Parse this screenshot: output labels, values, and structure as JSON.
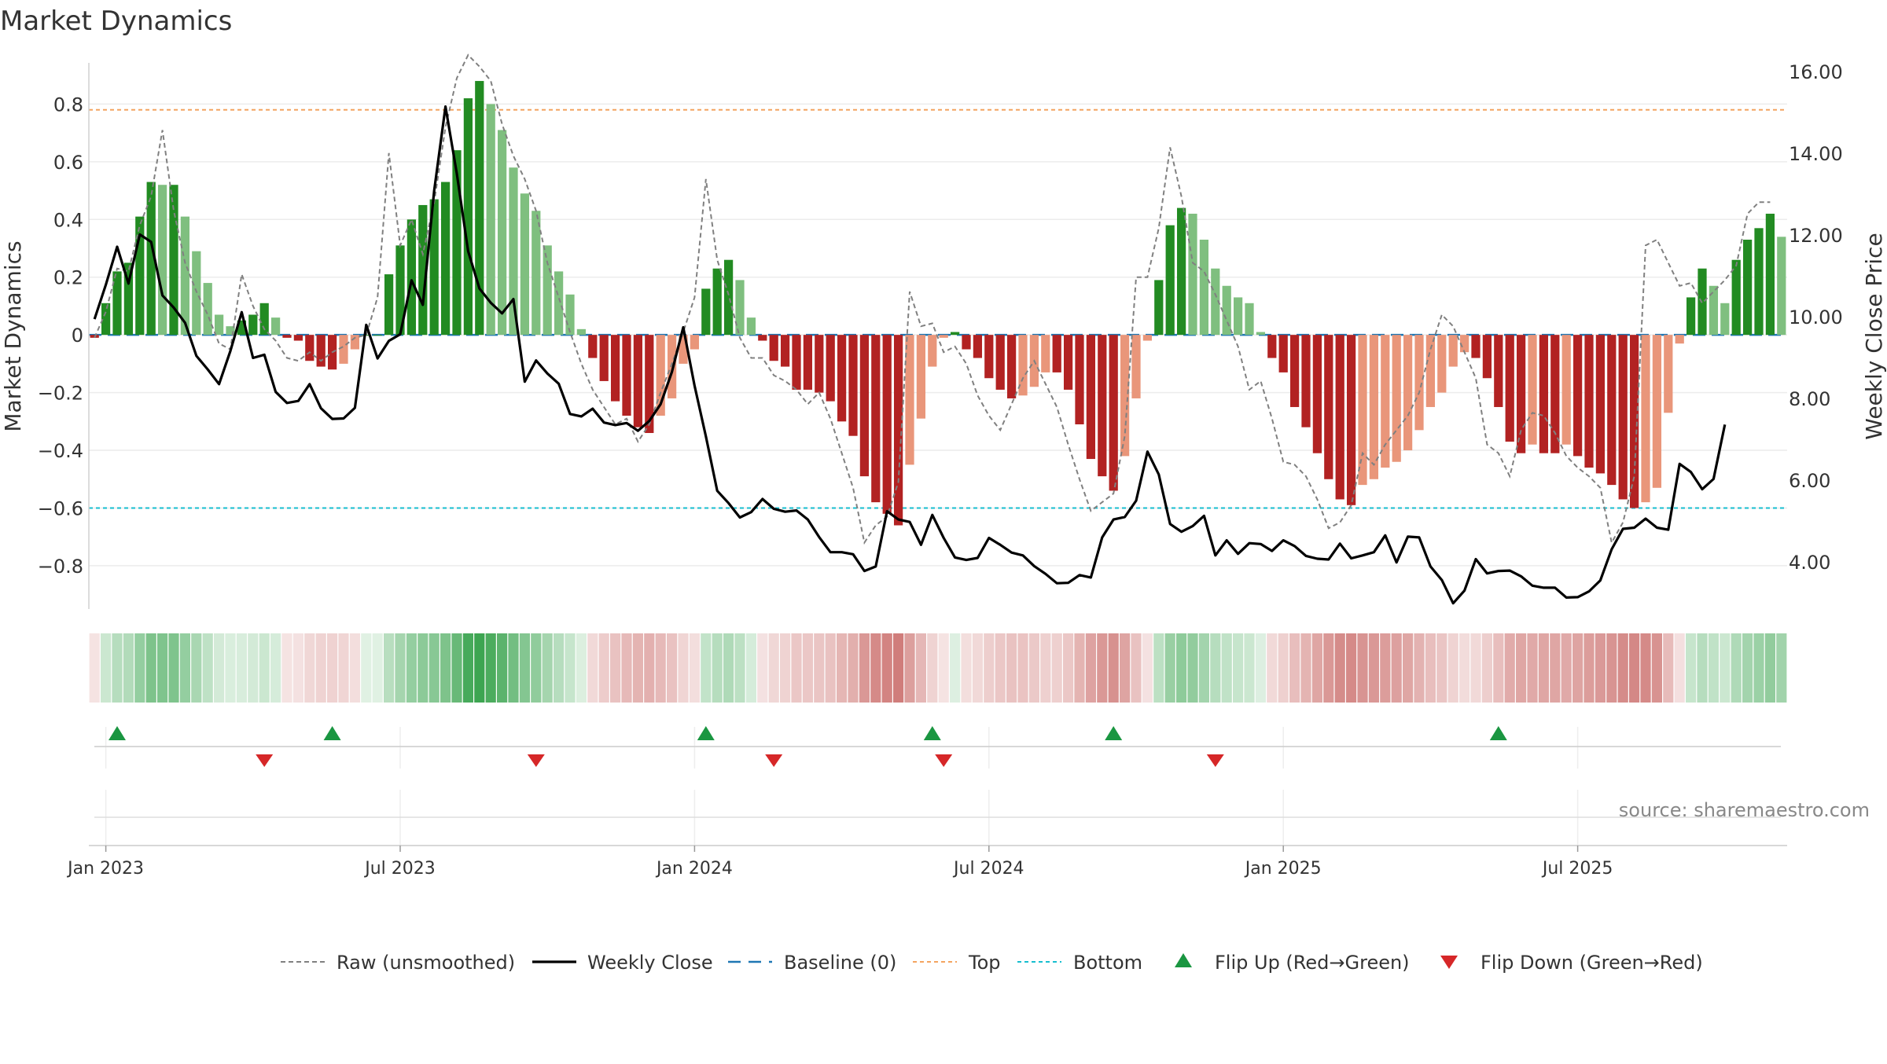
{
  "chart_data": {
    "type": "bar",
    "title": "Market Dynamics",
    "ylabel_left": "Market Dynamics",
    "ylabel_right": "Weekly Close Price",
    "ylim_left": [
      -0.95,
      0.97
    ],
    "ylim_right": [
      2.85,
      16.4
    ],
    "yticks_left": [
      -0.8,
      -0.6,
      -0.4,
      -0.2,
      0,
      0.2,
      0.4,
      0.6,
      0.8
    ],
    "ytick_labels_left": [
      "−0.8",
      "−0.6",
      "−0.4",
      "−0.2",
      "0",
      "0.2",
      "0.4",
      "0.6",
      "0.8"
    ],
    "yticks_right": [
      4,
      6,
      8,
      10,
      12,
      14,
      16
    ],
    "ytick_labels_right": [
      "4.00",
      "6.00",
      "8.00",
      "10.00",
      "12.00",
      "14.00",
      "16.00"
    ],
    "x_ticks": [
      {
        "week": 1,
        "label": "Jan 2023"
      },
      {
        "week": 27,
        "label": "Jul 2023"
      },
      {
        "week": 53,
        "label": "Jan 2024"
      },
      {
        "week": 79,
        "label": "Jul 2024"
      },
      {
        "week": 105,
        "label": "Jan 2025"
      },
      {
        "week": 131,
        "label": "Jul 2025"
      }
    ],
    "top_level": 0.78,
    "bottom_level": -0.6,
    "baseline": 0,
    "dynamics": [
      -0.01,
      0.11,
      0.22,
      0.25,
      0.41,
      0.53,
      0.52,
      0.52,
      0.41,
      0.29,
      0.18,
      0.07,
      0.03,
      0.05,
      0.07,
      0.11,
      0.06,
      -0.01,
      -0.02,
      -0.09,
      -0.11,
      -0.12,
      -0.1,
      -0.05,
      0.0,
      0.0,
      0.21,
      0.31,
      0.4,
      0.45,
      0.47,
      0.53,
      0.64,
      0.82,
      0.88,
      0.8,
      0.71,
      0.58,
      0.49,
      0.43,
      0.31,
      0.22,
      0.14,
      0.02,
      -0.08,
      -0.16,
      -0.23,
      -0.28,
      -0.32,
      -0.34,
      -0.28,
      -0.22,
      -0.1,
      -0.05,
      0.16,
      0.23,
      0.26,
      0.19,
      0.06,
      -0.02,
      -0.09,
      -0.11,
      -0.19,
      -0.19,
      -0.2,
      -0.23,
      -0.3,
      -0.35,
      -0.49,
      -0.58,
      -0.62,
      -0.66,
      -0.45,
      -0.29,
      -0.11,
      -0.01,
      0.01,
      -0.05,
      -0.08,
      -0.15,
      -0.19,
      -0.22,
      -0.21,
      -0.18,
      -0.13,
      -0.13,
      -0.19,
      -0.31,
      -0.43,
      -0.49,
      -0.54,
      -0.42,
      -0.22,
      -0.02,
      0.19,
      0.38,
      0.44,
      0.42,
      0.33,
      0.23,
      0.17,
      0.13,
      0.11,
      0.01,
      -0.08,
      -0.13,
      -0.25,
      -0.32,
      -0.41,
      -0.5,
      -0.57,
      -0.59,
      -0.52,
      -0.5,
      -0.46,
      -0.44,
      -0.4,
      -0.33,
      -0.25,
      -0.2,
      -0.11,
      -0.06,
      -0.08,
      -0.15,
      -0.25,
      -0.37,
      -0.41,
      -0.38,
      -0.41,
      -0.41,
      -0.38,
      -0.42,
      -0.46,
      -0.48,
      -0.52,
      -0.57,
      -0.6,
      -0.58,
      -0.53,
      -0.27,
      -0.03,
      0.13,
      0.23,
      0.17,
      0.11,
      0.26,
      0.33,
      0.37,
      0.42,
      0.34
    ],
    "raw": [
      -0.01,
      0.08,
      0.23,
      0.22,
      0.38,
      0.48,
      0.71,
      0.43,
      0.25,
      0.15,
      0.07,
      -0.03,
      -0.05,
      0.21,
      0.1,
      0.02,
      -0.02,
      -0.08,
      -0.09,
      -0.06,
      -0.09,
      -0.06,
      -0.04,
      -0.01,
      0.0,
      0.13,
      0.63,
      0.31,
      0.4,
      0.28,
      0.46,
      0.72,
      0.89,
      0.97,
      0.93,
      0.88,
      0.73,
      0.62,
      0.54,
      0.43,
      0.25,
      0.13,
      0.01,
      -0.1,
      -0.19,
      -0.25,
      -0.31,
      -0.29,
      -0.37,
      -0.31,
      -0.2,
      -0.1,
      0.01,
      0.13,
      0.54,
      0.26,
      0.14,
      -0.01,
      -0.08,
      -0.08,
      -0.14,
      -0.16,
      -0.19,
      -0.24,
      -0.2,
      -0.29,
      -0.41,
      -0.53,
      -0.72,
      -0.66,
      -0.63,
      -0.51,
      0.15,
      0.03,
      0.04,
      -0.06,
      -0.04,
      -0.1,
      -0.21,
      -0.28,
      -0.33,
      -0.24,
      -0.15,
      -0.09,
      -0.17,
      -0.25,
      -0.38,
      -0.5,
      -0.61,
      -0.58,
      -0.55,
      -0.35,
      0.2,
      0.2,
      0.37,
      0.65,
      0.48,
      0.25,
      0.22,
      0.14,
      0.05,
      -0.04,
      -0.19,
      -0.16,
      -0.29,
      -0.44,
      -0.45,
      -0.49,
      -0.57,
      -0.67,
      -0.65,
      -0.59,
      -0.41,
      -0.45,
      -0.38,
      -0.33,
      -0.28,
      -0.2,
      -0.05,
      0.07,
      0.03,
      -0.06,
      -0.15,
      -0.38,
      -0.41,
      -0.49,
      -0.33,
      -0.27,
      -0.28,
      -0.34,
      -0.42,
      -0.46,
      -0.49,
      -0.53,
      -0.72,
      -0.65,
      -0.49,
      0.31,
      0.33,
      0.25,
      0.17,
      0.18,
      0.11,
      0.15,
      0.19,
      0.24,
      0.42,
      0.46,
      0.46
    ],
    "weekly_close": [
      9.94,
      10.78,
      11.71,
      10.81,
      12.01,
      11.83,
      10.52,
      10.22,
      9.85,
      9.04,
      8.71,
      8.35,
      9.16,
      10.11,
      8.99,
      9.07,
      8.16,
      7.89,
      7.94,
      8.35,
      7.76,
      7.5,
      7.51,
      7.77,
      9.8,
      8.98,
      9.41,
      9.57,
      10.89,
      10.29,
      13.08,
      15.14,
      13.5,
      11.6,
      10.69,
      10.34,
      10.08,
      10.43,
      8.41,
      8.93,
      8.61,
      8.36,
      7.62,
      7.56,
      7.75,
      7.41,
      7.35,
      7.4,
      7.21,
      7.45,
      7.86,
      8.65,
      9.74,
      8.31,
      7.07,
      5.74,
      5.44,
      5.09,
      5.22,
      5.54,
      5.3,
      5.23,
      5.26,
      5.04,
      4.61,
      4.24,
      4.24,
      4.19,
      3.78,
      3.89,
      5.24,
      5.04,
      4.98,
      4.42,
      5.15,
      4.59,
      4.11,
      4.05,
      4.1,
      4.59,
      4.42,
      4.23,
      4.16,
      3.9,
      3.71,
      3.48,
      3.49,
      3.68,
      3.62,
      4.6,
      5.04,
      5.1,
      5.5,
      6.7,
      6.14,
      4.93,
      4.74,
      4.88,
      5.13,
      4.16,
      4.53,
      4.2,
      4.46,
      4.44,
      4.27,
      4.53,
      4.39,
      4.15,
      4.08,
      4.06,
      4.45,
      4.09,
      4.16,
      4.24,
      4.65,
      3.99,
      4.62,
      4.6,
      3.89,
      3.56,
      2.99,
      3.3,
      4.07,
      3.72,
      3.78,
      3.79,
      3.65,
      3.42,
      3.37,
      3.37,
      3.13,
      3.14,
      3.28,
      3.55,
      4.31,
      4.81,
      4.84,
      5.06,
      4.84,
      4.79,
      6.4,
      6.2,
      5.78,
      6.03,
      7.36
    ],
    "flip_up_weeks": [
      2,
      21,
      54,
      74,
      90,
      124
    ],
    "flip_down_weeks": [
      15,
      39,
      60,
      75,
      99
    ],
    "colors": {
      "strong_up": "#228b22",
      "weak_up": "#7fbf7f",
      "strong_down": "#b22222",
      "weak_down": "#e9967a",
      "raw_line": "#808080",
      "close_line": "#000000",
      "baseline": "#1f77b4",
      "top_line": "#f4a460",
      "bottom_line": "#17becf",
      "flip_up": "#1a9641",
      "flip_down": "#d62728",
      "heat_up": "#2e9e44",
      "heat_down": "#c0504d"
    },
    "legend": [
      {
        "label": "Raw (unsmoothed)",
        "kind": "raw"
      },
      {
        "label": "Weekly Close",
        "kind": "close"
      },
      {
        "label": "Baseline (0)",
        "kind": "baseline"
      },
      {
        "label": "Top",
        "kind": "top"
      },
      {
        "label": "Bottom",
        "kind": "bottom"
      },
      {
        "label": "Flip Up (Red→Green)",
        "kind": "flipup"
      },
      {
        "label": "Flip Down (Green→Red)",
        "kind": "flipdown"
      }
    ],
    "source": "source: sharemaestro.com"
  }
}
